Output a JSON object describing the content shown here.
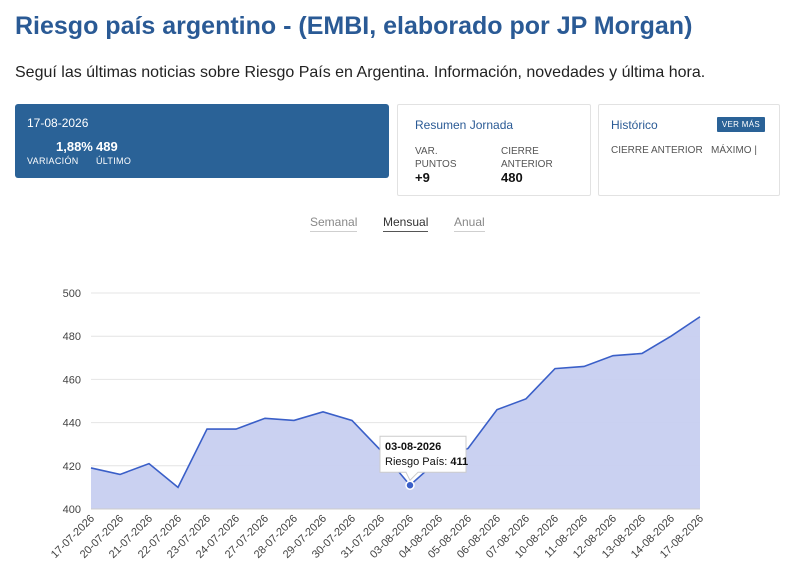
{
  "page": {
    "title": "Riesgo país argentino - (EMBI, elaborado por JP Morgan)",
    "subtitle": "Seguí las últimas noticias sobre Riesgo País en Argentina. Información, novedades y última hora."
  },
  "summary": {
    "date": "17-08-2026",
    "variation_value": "1,88%",
    "variation_label": "VARIACIÓN",
    "last_value": "489",
    "last_label": "ÚLTIMO"
  },
  "jornada": {
    "title": "Resumen Jornada",
    "var_label": "VAR. PUNTOS",
    "var_value": "+9",
    "prev_label": "CIERRE ANTERIOR",
    "prev_value": "480"
  },
  "historico": {
    "title": "Histórico",
    "button": "VER MÁS",
    "col1": "CIERRE ANTERIOR",
    "col2": "MÁXIMO |"
  },
  "tabs": [
    {
      "label": "Semanal",
      "active": false
    },
    {
      "label": "Mensual",
      "active": true
    },
    {
      "label": "Anual",
      "active": false
    }
  ],
  "tooltip": {
    "date": "03-08-2026",
    "label": "Riesgo País:",
    "value": "411"
  },
  "colors": {
    "accent": "#2a6297",
    "title": "#2a5a95",
    "line": "#3a5fc8",
    "fill": "#c7cff0"
  },
  "chart_data": {
    "type": "area",
    "x": [
      "17-07-2026",
      "20-07-2026",
      "21-07-2026",
      "22-07-2026",
      "23-07-2026",
      "24-07-2026",
      "27-07-2026",
      "28-07-2026",
      "29-07-2026",
      "30-07-2026",
      "31-07-2026",
      "03-08-2026",
      "04-08-2026",
      "05-08-2026",
      "06-08-2026",
      "07-08-2026",
      "10-08-2026",
      "11-08-2026",
      "12-08-2026",
      "13-08-2026",
      "14-08-2026",
      "17-08-2026"
    ],
    "series": [
      {
        "name": "Riesgo País",
        "values": [
          419,
          416,
          421,
          410,
          437,
          437,
          442,
          441,
          445,
          441,
          427,
          411,
          423,
          428,
          446,
          451,
          465,
          466,
          471,
          472,
          480,
          489
        ]
      }
    ],
    "ylim": [
      400,
      500
    ],
    "yticks": [
      400,
      420,
      440,
      460,
      480,
      500
    ],
    "grid": true,
    "highlight_index": 11
  }
}
